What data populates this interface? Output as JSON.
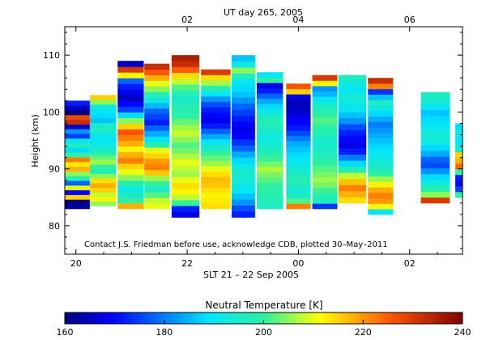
{
  "chart_data": {
    "type": "heatmap",
    "top_title": "UT day 265, 2005",
    "top_ticks": [
      "02",
      "04",
      "06"
    ],
    "top_tick_hours": [
      2,
      4,
      6
    ],
    "xlabel": "SLT 21 – 22 Sep 2005",
    "x_ticks": [
      "20",
      "22",
      "00",
      "02"
    ],
    "x_tick_hours": [
      20,
      22,
      24,
      26
    ],
    "xlim": [
      19.8,
      26.95
    ],
    "ylabel": "Height (km)",
    "y_ticks": [
      "80",
      "90",
      "100",
      "110"
    ],
    "y_tick_values": [
      80,
      90,
      100,
      110
    ],
    "ylim": [
      75,
      115
    ],
    "annotation": "Contact J.S. Friedman before use, acknowledge CDB, plotted 30–May–2011",
    "colorbar": {
      "title": "Neutral Temperature [K]",
      "range": [
        160,
        240
      ],
      "ticks": [
        "160",
        "180",
        "200",
        "220",
        "240"
      ],
      "tick_values": [
        160,
        180,
        200,
        220,
        240
      ]
    },
    "columns": [
      {
        "x0": 19.8,
        "x1": 20.25,
        "y0": 83,
        "y1": 102,
        "temps": [
          162,
          160,
          215,
          170,
          210,
          178,
          198,
          205,
          218,
          213,
          222,
          200,
          188,
          196,
          192,
          175,
          182,
          165,
          232,
          228,
          160,
          165,
          172
        ]
      },
      {
        "x0": 20.25,
        "x1": 20.72,
        "y0": 83.5,
        "y1": 103,
        "temps": [
          205,
          212,
          208,
          215,
          218,
          214,
          205,
          197,
          200,
          206,
          203,
          198,
          194,
          192,
          190,
          192,
          196,
          195,
          186,
          188,
          190,
          193,
          205,
          215
        ]
      },
      {
        "x0": 20.75,
        "x1": 21.22,
        "y0": 83,
        "y1": 109,
        "temps": [
          218,
          200,
          195,
          192,
          198,
          205,
          210,
          215,
          222,
          218,
          212,
          218,
          222,
          226,
          215,
          205,
          188,
          175,
          170,
          165,
          168,
          172,
          178,
          212,
          230,
          165
        ]
      },
      {
        "x0": 21.23,
        "x1": 21.68,
        "y0": 83,
        "y1": 108.5,
        "temps": [
          210,
          208,
          202,
          196,
          200,
          206,
          216,
          222,
          220,
          215,
          210,
          198,
          190,
          184,
          178,
          172,
          175,
          178,
          185,
          192,
          198,
          205,
          210,
          218,
          226,
          232
        ]
      },
      {
        "x0": 21.72,
        "x1": 22.22,
        "y0": 81.5,
        "y1": 110,
        "temps": [
          168,
          172,
          200,
          208,
          212,
          214,
          210,
          206,
          208,
          210,
          207,
          204,
          202,
          205,
          208,
          206,
          203,
          200,
          198,
          197,
          195,
          198,
          202,
          208,
          214,
          225,
          232,
          235
        ]
      },
      {
        "x0": 22.25,
        "x1": 22.78,
        "y0": 83,
        "y1": 107.5,
        "temps": [
          214,
          213,
          212,
          214,
          216,
          217,
          214,
          210,
          206,
          203,
          200,
          195,
          190,
          184,
          178,
          172,
          168,
          170,
          172,
          176,
          182,
          190,
          198,
          206,
          214,
          230
        ]
      },
      {
        "x0": 22.8,
        "x1": 23.22,
        "y0": 81.5,
        "y1": 110,
        "temps": [
          172,
          176,
          182,
          186,
          190,
          192,
          194,
          195,
          192,
          188,
          184,
          178,
          174,
          170,
          168,
          170,
          172,
          175,
          178,
          182,
          186,
          188,
          190,
          196,
          205,
          192,
          186
        ]
      },
      {
        "x0": 23.25,
        "x1": 23.72,
        "y0": 83,
        "y1": 107,
        "temps": [
          196,
          197,
          198,
          199,
          200,
          202,
          204,
          207,
          204,
          201,
          198,
          196,
          194,
          192,
          194,
          196,
          198,
          196,
          192,
          188,
          184,
          178,
          172,
          168,
          200,
          190
        ]
      },
      {
        "x0": 23.78,
        "x1": 24.22,
        "y0": 83,
        "y1": 105,
        "temps": [
          222,
          202,
          196,
          194,
          196,
          198,
          196,
          194,
          192,
          190,
          188,
          186,
          184,
          180,
          176,
          172,
          170,
          168,
          166,
          165,
          164,
          168,
          215,
          226
        ]
      },
      {
        "x0": 24.25,
        "x1": 24.7,
        "y0": 83,
        "y1": 106.5,
        "temps": [
          174,
          196,
          198,
          201,
          204,
          206,
          204,
          202,
          200,
          198,
          196,
          195,
          194,
          196,
          198,
          200,
          202,
          200,
          198,
          195,
          190,
          185,
          182,
          212,
          230
        ]
      },
      {
        "x0": 24.72,
        "x1": 25.22,
        "y0": 84,
        "y1": 106.5,
        "temps": [
          214,
          218,
          222,
          216,
          208,
          198,
          188,
          180,
          172,
          168,
          170,
          172,
          176,
          182,
          186,
          190,
          192,
          194,
          190,
          192,
          196
        ]
      },
      {
        "x0": 25.25,
        "x1": 25.7,
        "y0": 82,
        "y1": 106,
        "temps": [
          190,
          212,
          220,
          222,
          218,
          212,
          206,
          200,
          196,
          194,
          192,
          190,
          188,
          186,
          184,
          182,
          180,
          184,
          188,
          192,
          196,
          186,
          174,
          222,
          232
        ]
      },
      {
        "x0": 26.2,
        "x1": 26.72,
        "y0": 84,
        "y1": 103.5,
        "temps": [
          230,
          205,
          198,
          192,
          188,
          182,
          176,
          178,
          184,
          188,
          192,
          194,
          192,
          190,
          188,
          186,
          190,
          194,
          196
        ]
      },
      {
        "x0": 26.82,
        "x1": 26.95,
        "y0": 85,
        "y1": 98,
        "temps": [
          200,
          175,
          170,
          172,
          200,
          224,
          218,
          215,
          195,
          190,
          190,
          192,
          188
        ]
      }
    ]
  }
}
